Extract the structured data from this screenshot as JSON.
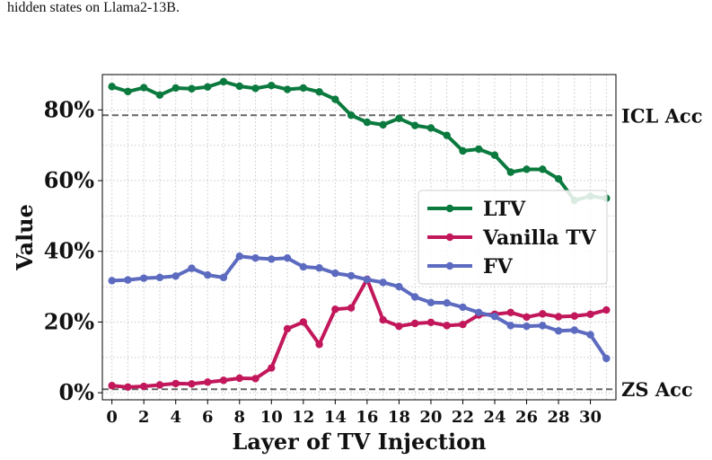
{
  "caption": "hidden states on Llama2-13B.",
  "chart_data": {
    "type": "line",
    "xlabel": "Layer of TV Injection",
    "ylabel": "Value",
    "xlim": [
      -0.6,
      31.6
    ],
    "ylim": [
      -0.02,
      0.9
    ],
    "x_ticks": [
      0,
      2,
      4,
      6,
      8,
      10,
      12,
      14,
      16,
      18,
      20,
      22,
      24,
      26,
      28,
      30
    ],
    "y_ticks": [
      0,
      0.2,
      0.4,
      0.6,
      0.8
    ],
    "y_tick_labels": [
      "0%",
      "20%",
      "40%",
      "60%",
      "80%"
    ],
    "grid": true,
    "legend_position": "center-right",
    "x": [
      0,
      1,
      2,
      3,
      4,
      5,
      6,
      7,
      8,
      9,
      10,
      11,
      12,
      13,
      14,
      15,
      16,
      17,
      18,
      19,
      20,
      21,
      22,
      23,
      24,
      25,
      26,
      27,
      28,
      29,
      30,
      31
    ],
    "series": [
      {
        "name": "LTV",
        "color": "#0b7a3e",
        "values": [
          0.866,
          0.852,
          0.863,
          0.842,
          0.862,
          0.86,
          0.865,
          0.88,
          0.867,
          0.861,
          0.869,
          0.858,
          0.862,
          0.851,
          0.83,
          0.785,
          0.765,
          0.758,
          0.776,
          0.756,
          0.749,
          0.728,
          0.684,
          0.689,
          0.672,
          0.624,
          0.632,
          0.632,
          0.605,
          0.544,
          0.556,
          0.55
        ]
      },
      {
        "name": "Vanilla TV",
        "color": "#c2185b",
        "values": [
          0.02,
          0.016,
          0.018,
          0.022,
          0.026,
          0.025,
          0.03,
          0.035,
          0.041,
          0.04,
          0.07,
          0.181,
          0.2,
          0.137,
          0.236,
          0.24,
          0.321,
          0.206,
          0.188,
          0.196,
          0.199,
          0.19,
          0.193,
          0.22,
          0.222,
          0.227,
          0.214,
          0.223,
          0.215,
          0.217,
          0.222,
          0.234
        ]
      },
      {
        "name": "FV",
        "color": "#5c6bc0",
        "values": [
          0.317,
          0.319,
          0.324,
          0.326,
          0.33,
          0.352,
          0.333,
          0.326,
          0.386,
          0.381,
          0.378,
          0.381,
          0.356,
          0.353,
          0.338,
          0.331,
          0.32,
          0.312,
          0.3,
          0.271,
          0.255,
          0.254,
          0.242,
          0.227,
          0.216,
          0.19,
          0.188,
          0.19,
          0.175,
          0.177,
          0.164,
          0.097
        ]
      }
    ],
    "reference_lines": [
      {
        "label": "ICL Acc",
        "value": 0.785,
        "color": "#666666"
      },
      {
        "label": "ZS Acc",
        "value": 0.01,
        "color": "#666666"
      }
    ]
  }
}
